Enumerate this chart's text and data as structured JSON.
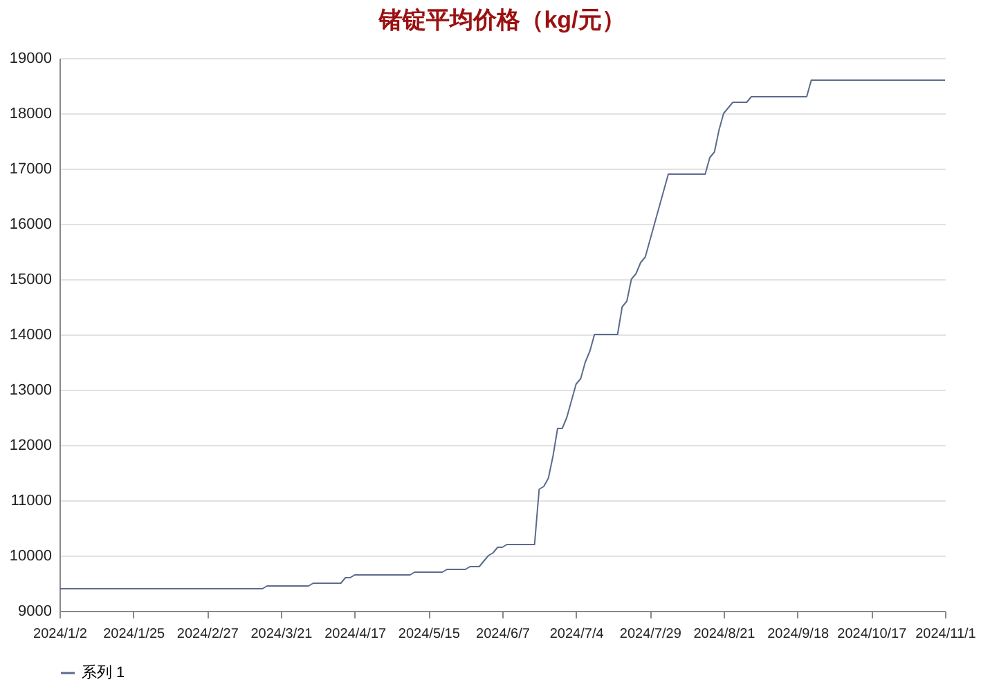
{
  "chart_data": {
    "type": "line",
    "title": "锗锭平均价格（kg/元）",
    "categories": [
      "2024/1/2",
      null,
      null,
      null,
      null,
      null,
      null,
      null,
      null,
      null,
      null,
      null,
      null,
      null,
      null,
      null,
      "2024/1/25",
      null,
      null,
      null,
      null,
      null,
      null,
      null,
      null,
      null,
      null,
      null,
      null,
      null,
      null,
      null,
      "2024/2/27",
      null,
      null,
      null,
      null,
      null,
      null,
      null,
      null,
      null,
      null,
      null,
      null,
      null,
      null,
      null,
      "2024/3/21",
      null,
      null,
      null,
      null,
      null,
      null,
      null,
      null,
      null,
      null,
      null,
      null,
      null,
      null,
      null,
      "2024/4/17",
      null,
      null,
      null,
      null,
      null,
      null,
      null,
      null,
      null,
      null,
      null,
      null,
      null,
      null,
      null,
      "2024/5/15",
      null,
      null,
      null,
      null,
      null,
      null,
      null,
      null,
      null,
      null,
      null,
      null,
      null,
      null,
      null,
      "2024/6/7",
      null,
      null,
      null,
      null,
      null,
      null,
      null,
      null,
      null,
      null,
      null,
      null,
      null,
      null,
      null,
      "2024/7/4",
      null,
      null,
      null,
      null,
      null,
      null,
      null,
      null,
      null,
      null,
      null,
      null,
      null,
      null,
      null,
      "2024/7/29",
      null,
      null,
      null,
      null,
      null,
      null,
      null,
      null,
      null,
      null,
      null,
      null,
      null,
      null,
      null,
      "2024/8/21",
      null,
      null,
      null,
      null,
      null,
      null,
      null,
      null,
      null,
      null,
      null,
      null,
      null,
      null,
      null,
      "2024/9/18",
      null,
      null,
      null,
      null,
      null,
      null,
      null,
      null,
      null,
      null,
      null,
      null,
      null,
      null,
      null,
      "2024/10/17",
      null,
      null,
      null,
      null,
      null,
      null,
      null,
      null,
      null,
      null,
      null,
      null,
      null,
      null,
      null,
      "2024/11/1"
    ],
    "series": [
      {
        "name": "系列 1",
        "color": "#5b6b8c",
        "values": [
          9400,
          9400,
          9400,
          9400,
          9400,
          9400,
          9400,
          9400,
          9400,
          9400,
          9400,
          9400,
          9400,
          9400,
          9400,
          9400,
          9400,
          9400,
          9400,
          9400,
          9400,
          9400,
          9400,
          9400,
          9400,
          9400,
          9400,
          9400,
          9400,
          9400,
          9400,
          9400,
          9400,
          9400,
          9400,
          9400,
          9400,
          9400,
          9400,
          9400,
          9400,
          9400,
          9400,
          9400,
          9400,
          9450,
          9450,
          9450,
          9450,
          9450,
          9450,
          9450,
          9450,
          9450,
          9450,
          9500,
          9500,
          9500,
          9500,
          9500,
          9500,
          9500,
          9600,
          9600,
          9650,
          9650,
          9650,
          9650,
          9650,
          9650,
          9650,
          9650,
          9650,
          9650,
          9650,
          9650,
          9650,
          9700,
          9700,
          9700,
          9700,
          9700,
          9700,
          9700,
          9750,
          9750,
          9750,
          9750,
          9750,
          9800,
          9800,
          9800,
          9900,
          10000,
          10050,
          10150,
          10150,
          10200,
          10200,
          10200,
          10200,
          10200,
          10200,
          10200,
          11200,
          11250,
          11400,
          11800,
          12300,
          12300,
          12500,
          12800,
          13100,
          13200,
          13500,
          13700,
          14000,
          14000,
          14000,
          14000,
          14000,
          14000,
          14500,
          14600,
          15000,
          15100,
          15300,
          15400,
          15700,
          16000,
          16300,
          16600,
          16900,
          16900,
          16900,
          16900,
          16900,
          16900,
          16900,
          16900,
          16900,
          17200,
          17300,
          17700,
          18000,
          18100,
          18200,
          18200,
          18200,
          18200,
          18300,
          18300,
          18300,
          18300,
          18300,
          18300,
          18300,
          18300,
          18300,
          18300,
          18300,
          18300,
          18300,
          18600,
          18600,
          18600,
          18600,
          18600,
          18600,
          18600,
          18600,
          18600,
          18600,
          18600,
          18600,
          18600,
          18600,
          18600,
          18600,
          18600,
          18600,
          18600,
          18600,
          18600,
          18600,
          18600,
          18600,
          18600,
          18600,
          18600,
          18600,
          18600,
          18600
        ]
      }
    ],
    "ylim": [
      9000,
      19000
    ],
    "yticks": [
      9000,
      10000,
      11000,
      12000,
      13000,
      14000,
      15000,
      16000,
      17000,
      18000,
      19000
    ],
    "grid": "y",
    "legend": "bottom",
    "marker": "none"
  }
}
